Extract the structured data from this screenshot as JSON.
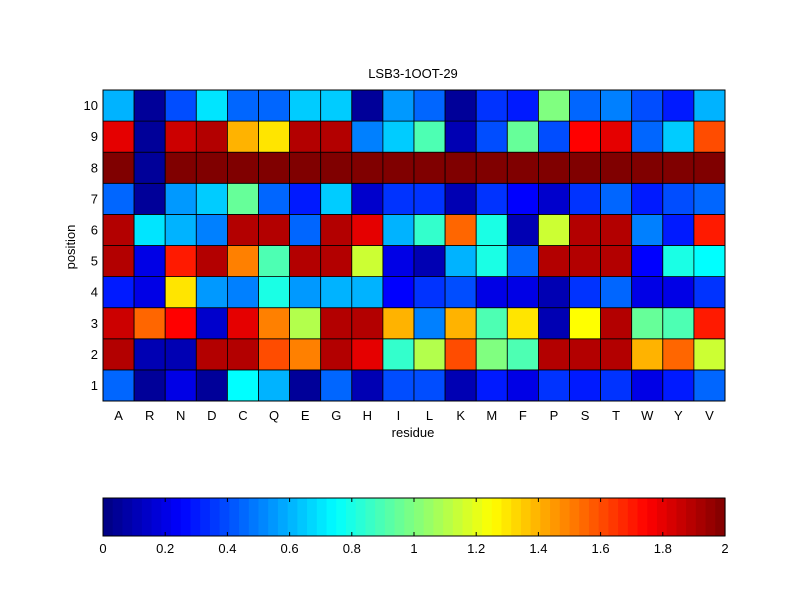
{
  "chart_data": {
    "type": "heatmap",
    "title": "LSB3-1OOT-29",
    "xlabel": "residue",
    "ylabel": "position",
    "x_categories": [
      "A",
      "R",
      "N",
      "D",
      "C",
      "Q",
      "E",
      "G",
      "H",
      "I",
      "L",
      "K",
      "M",
      "F",
      "P",
      "S",
      "T",
      "W",
      "Y",
      "V"
    ],
    "y_categories": [
      "1",
      "2",
      "3",
      "4",
      "5",
      "6",
      "7",
      "8",
      "9",
      "10"
    ],
    "values": [
      [
        0.45,
        0.05,
        0.2,
        0.05,
        0.75,
        0.6,
        0.05,
        0.45,
        0.1,
        0.4,
        0.4,
        0.1,
        0.3,
        0.2,
        0.35,
        0.3,
        0.35,
        0.2,
        0.3,
        0.45
      ],
      [
        1.9,
        0.1,
        0.1,
        1.9,
        1.9,
        1.6,
        1.5,
        1.9,
        1.8,
        0.85,
        1.1,
        1.6,
        1.0,
        0.9,
        1.9,
        1.9,
        1.9,
        1.4,
        1.55,
        1.15
      ],
      [
        1.85,
        1.55,
        1.75,
        0.15,
        1.8,
        1.5,
        1.1,
        1.9,
        1.9,
        1.4,
        0.5,
        1.4,
        0.9,
        1.3,
        0.1,
        1.25,
        1.9,
        0.95,
        0.9,
        1.7
      ],
      [
        0.3,
        0.2,
        1.3,
        0.55,
        0.5,
        0.8,
        0.55,
        0.6,
        0.6,
        0.25,
        0.35,
        0.4,
        0.2,
        0.2,
        0.1,
        0.35,
        0.45,
        0.2,
        0.2,
        0.35
      ],
      [
        1.9,
        0.2,
        1.7,
        1.9,
        1.5,
        0.9,
        1.9,
        1.9,
        1.15,
        0.2,
        0.1,
        0.6,
        0.8,
        0.45,
        1.9,
        1.9,
        1.9,
        0.25,
        0.8,
        0.75
      ],
      [
        1.9,
        0.7,
        0.6,
        0.5,
        1.9,
        1.9,
        0.45,
        1.9,
        1.8,
        0.6,
        0.85,
        1.55,
        0.8,
        0.1,
        1.15,
        1.9,
        1.9,
        0.5,
        0.3,
        1.7
      ],
      [
        0.45,
        0.05,
        0.55,
        0.65,
        0.95,
        0.45,
        0.3,
        0.65,
        0.15,
        0.35,
        0.35,
        0.1,
        0.35,
        0.25,
        0.15,
        0.35,
        0.45,
        0.3,
        0.4,
        0.45
      ],
      [
        2,
        0.05,
        2,
        2,
        2,
        2,
        2,
        2,
        2,
        2,
        2,
        2,
        2,
        2,
        2,
        2,
        2,
        2,
        2,
        2
      ],
      [
        1.8,
        0.05,
        1.85,
        1.9,
        1.4,
        1.3,
        1.9,
        1.9,
        0.5,
        0.65,
        0.9,
        0.1,
        0.4,
        0.95,
        0.4,
        1.75,
        1.8,
        0.45,
        0.65,
        1.6
      ],
      [
        0.6,
        0.05,
        0.4,
        0.7,
        0.45,
        0.45,
        0.65,
        0.65,
        0.05,
        0.55,
        0.45,
        0.05,
        0.35,
        0.3,
        1.0,
        0.45,
        0.5,
        0.4,
        0.3,
        0.6
      ]
    ],
    "colorbar": {
      "min": 0,
      "max": 2,
      "ticks": [
        "0",
        "0.2",
        "0.4",
        "0.6",
        "0.8",
        "1",
        "1.2",
        "1.4",
        "1.6",
        "1.8",
        "2"
      ]
    }
  }
}
